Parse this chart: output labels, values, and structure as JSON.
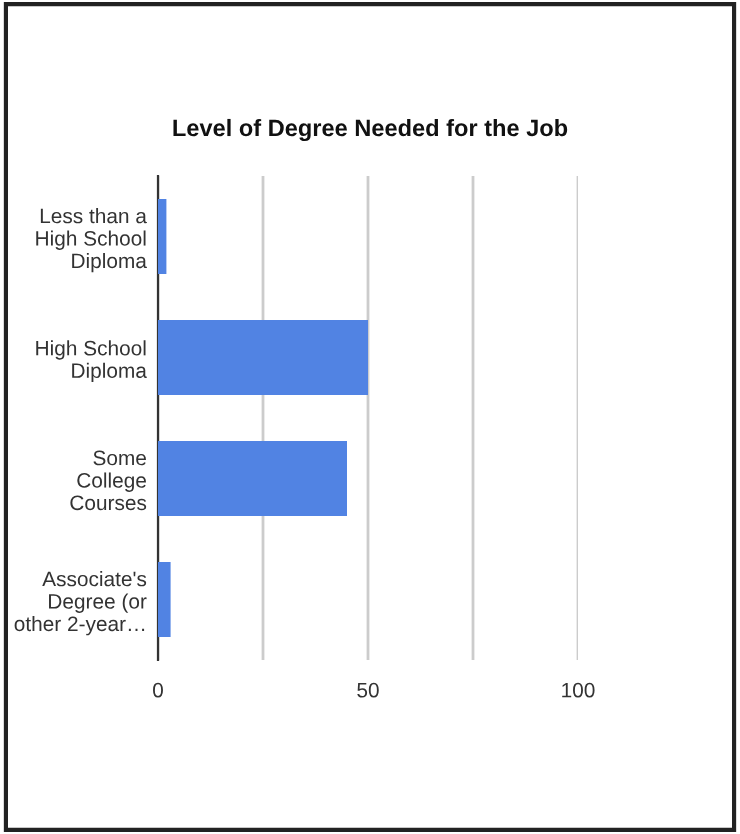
{
  "chart_data": {
    "type": "bar",
    "orientation": "horizontal",
    "title": "Level of Degree Needed for the Job",
    "categories": [
      "Less than a\nHigh School\nDiploma",
      "High School\nDiploma",
      "Some\nCollege\nCourses",
      "Associate's\nDegree (or\nother 2-year…"
    ],
    "values": [
      2,
      50,
      45,
      3
    ],
    "color": "#5183e3",
    "xlim": [
      0,
      100
    ],
    "xticks": [
      0,
      {
        "value": 25,
        "label": null
      },
      50,
      {
        "value": 75,
        "label": null
      },
      100
    ],
    "grid": "x"
  }
}
